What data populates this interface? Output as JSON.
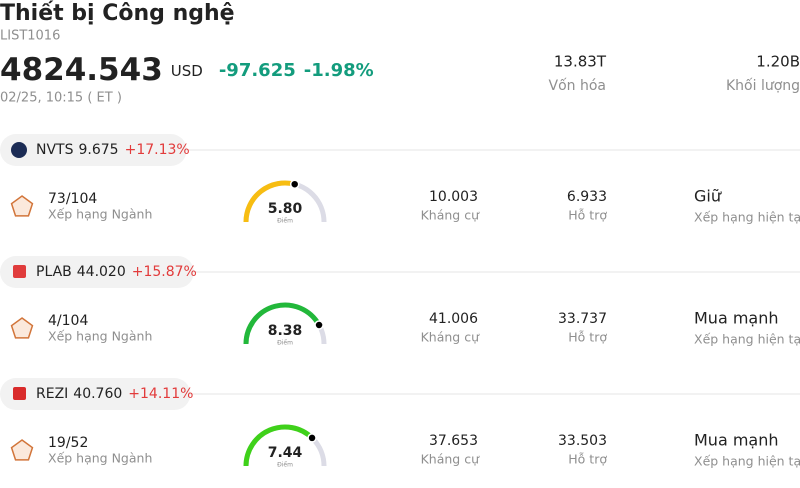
{
  "header": {
    "title": "Thiết bị Công nghệ",
    "code": "LIST1016",
    "price": "4824.543",
    "currency": "USD",
    "change": "-97.625",
    "change_percent": "-1.98%",
    "datetime": "02/25, 10:15  ( ET )",
    "stats": [
      {
        "value": "13.83T",
        "label": "Vốn hóa"
      },
      {
        "value": "1.20B",
        "label": "Khối lượng"
      }
    ]
  },
  "stocks": [
    {
      "ticker": "NVTS",
      "price": "9.675",
      "change": "+17.13%",
      "rank": "73/104",
      "rank_label": "Xếp hạng Ngành",
      "score": "5.80",
      "score_label": "Điểm",
      "gauge_color": "#f7bd12",
      "resistance": "10.003",
      "resistance_label": "Kháng cự",
      "support": "6.933",
      "support_label": "Hỗ trợ",
      "rating": "Giữ",
      "rating_label": "Xếp hạng hiện tại",
      "rating_color": "#222222"
    },
    {
      "ticker": "PLAB",
      "price": "44.020",
      "change": "+15.87%",
      "rank": "4/104",
      "rank_label": "Xếp hạng Ngành",
      "score": "8.38",
      "score_label": "Điểm",
      "gauge_color": "#22b83a",
      "resistance": "41.006",
      "resistance_label": "Kháng cự",
      "support": "33.737",
      "support_label": "Hỗ trợ",
      "rating": "Mua mạnh",
      "rating_label": "Xếp hạng hiện tại",
      "rating_color": "#11a0a0"
    },
    {
      "ticker": "REZI",
      "price": "40.760",
      "change": "+14.11%",
      "rank": "19/52",
      "rank_label": "Xếp hạng Ngành",
      "score": "7.44",
      "score_label": "Điểm",
      "gauge_color": "#3fd11a",
      "resistance": "37.653",
      "resistance_label": "Kháng cự",
      "support": "33.503",
      "support_label": "Hỗ trợ",
      "rating": "Mua mạnh",
      "rating_label": "Xếp hạng hiện tại",
      "rating_color": "#11a0a0"
    }
  ]
}
